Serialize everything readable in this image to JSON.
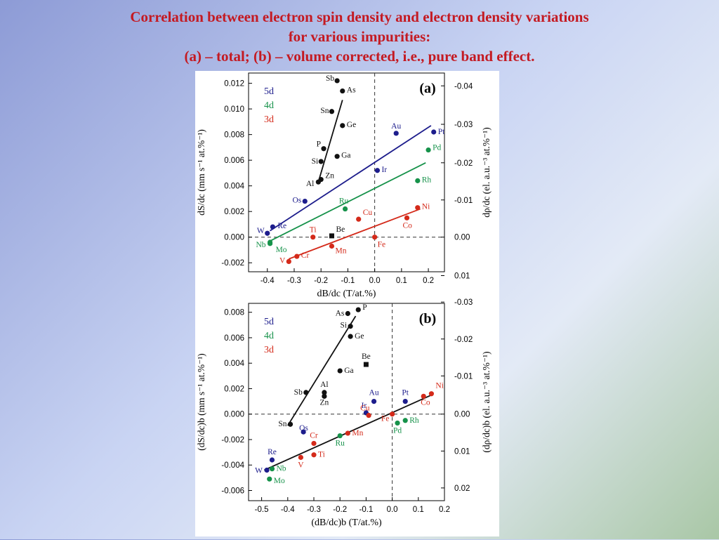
{
  "slide": {
    "title_line1": "Correlation between electron spin density and electron density variations",
    "title_line2": "for various impurities:",
    "title_line3": "(a) – total; (b) – volume corrected, i.e., pure band effect."
  },
  "colors": {
    "title": "#c41a22",
    "5d": "#1d1d8c",
    "4d": "#16924a",
    "3d": "#d42a1a",
    "sp": "#111111",
    "zero_line": "#333333"
  },
  "chart_data": [
    {
      "id": "a",
      "type": "scatter",
      "panel_label": "(a)",
      "xlabel": "dB/dc  (T/at.%)",
      "ylabel": "dS/dc  (mm s⁻¹ at.%⁻¹)",
      "y2label": "dρ/dc  (el. a.u.⁻³ at.%⁻¹)",
      "xlim": [
        -0.47,
        0.26
      ],
      "ylim": [
        -0.0027,
        0.0128
      ],
      "xticks": [
        -0.4,
        -0.3,
        -0.2,
        -0.1,
        0.0,
        0.1,
        0.2
      ],
      "xtick_labels": [
        "-0.4",
        "-0.3",
        "-0.2",
        "-0.1",
        "0.0",
        "0.1",
        "0.2"
      ],
      "yticks": [
        -0.002,
        0.0,
        0.002,
        0.004,
        0.006,
        0.008,
        0.01,
        0.012
      ],
      "ytick_labels": [
        "-0.002",
        "0.000",
        "0.002",
        "0.004",
        "0.006",
        "0.008",
        "0.010",
        "0.012"
      ],
      "y2ticks": [
        0.0118,
        0.0088,
        0.0058,
        0.0029,
        0.0,
        -0.003
      ],
      "y2tick_labels": [
        "-0.04",
        "-0.03",
        "-0.02",
        "-0.01",
        "0.00",
        "0.01"
      ],
      "legend": [
        {
          "label": "5d",
          "group": "5d"
        },
        {
          "label": "4d",
          "group": "4d"
        },
        {
          "label": "3d",
          "group": "3d"
        }
      ],
      "zero_lines": {
        "x": 0.0,
        "y": 0.0
      },
      "series": [
        {
          "name": "5d",
          "points": [
            {
              "label": "W",
              "x": -0.4,
              "y": 0.0003
            },
            {
              "label": "Re",
              "x": -0.38,
              "y": 0.0008
            },
            {
              "label": "Os",
              "x": -0.26,
              "y": 0.0028
            },
            {
              "label": "Ir",
              "x": 0.01,
              "y": 0.0052
            },
            {
              "label": "Au",
              "x": 0.08,
              "y": 0.0081
            },
            {
              "label": "Pt",
              "x": 0.22,
              "y": 0.0082
            }
          ]
        },
        {
          "name": "4d",
          "points": [
            {
              "label": "Nb",
              "x": -0.39,
              "y": -0.0005
            },
            {
              "label": "Mo",
              "x": -0.39,
              "y": -0.0004
            },
            {
              "label": "Ru",
              "x": -0.11,
              "y": 0.0022
            },
            {
              "label": "Rh",
              "x": 0.16,
              "y": 0.0044
            },
            {
              "label": "Pd",
              "x": 0.2,
              "y": 0.0068
            }
          ]
        },
        {
          "name": "3d",
          "points": [
            {
              "label": "V",
              "x": -0.32,
              "y": -0.0019
            },
            {
              "label": "Cr",
              "x": -0.29,
              "y": -0.0015
            },
            {
              "label": "Ti",
              "x": -0.23,
              "y": 0.0
            },
            {
              "label": "Mn",
              "x": -0.16,
              "y": -0.0007
            },
            {
              "label": "Cu",
              "x": -0.06,
              "y": 0.0014
            },
            {
              "label": "Fe",
              "x": 0.0,
              "y": 0.0
            },
            {
              "label": "Co",
              "x": 0.12,
              "y": 0.0015
            },
            {
              "label": "Ni",
              "x": 0.16,
              "y": 0.0023
            }
          ]
        },
        {
          "name": "sp",
          "points": [
            {
              "label": "Sb",
              "x": -0.14,
              "y": 0.0122
            },
            {
              "label": "As",
              "x": -0.12,
              "y": 0.0114
            },
            {
              "label": "Sn",
              "x": -0.16,
              "y": 0.0098
            },
            {
              "label": "Ge",
              "x": -0.12,
              "y": 0.0087
            },
            {
              "label": "P",
              "x": -0.19,
              "y": 0.0069
            },
            {
              "label": "Ga",
              "x": -0.14,
              "y": 0.0063
            },
            {
              "label": "Si",
              "x": -0.2,
              "y": 0.0059
            },
            {
              "label": "Zn",
              "x": -0.2,
              "y": 0.0045
            },
            {
              "label": "Al",
              "x": -0.21,
              "y": 0.0043
            }
          ]
        },
        {
          "name": "Be",
          "points": [
            {
              "label": "Be",
              "x": -0.16,
              "y": 0.0001
            }
          ]
        }
      ],
      "fit_lines": [
        {
          "group": "5d",
          "from": [
            -0.39,
            0.0005
          ],
          "to": [
            0.21,
            0.0087
          ]
        },
        {
          "group": "4d",
          "from": [
            -0.39,
            -0.0003
          ],
          "to": [
            0.19,
            0.0058
          ]
        },
        {
          "group": "3d",
          "from": [
            -0.32,
            -0.0017
          ],
          "to": [
            0.17,
            0.0022
          ]
        },
        {
          "group": "sp",
          "from": [
            -0.21,
            0.0043
          ],
          "to": [
            -0.12,
            0.0107
          ]
        }
      ]
    },
    {
      "id": "b",
      "type": "scatter",
      "panel_label": "(b)",
      "xlabel": "(dB/dc)b  (T/at.%)",
      "ylabel": "(dS/dc)b  (mm s⁻¹ at.%⁻¹)",
      "y2label": "(dρ/dc)b  (el. a.u.⁻³ at.%⁻¹)",
      "xlim": [
        -0.55,
        0.2
      ],
      "ylim": [
        -0.0068,
        0.0087
      ],
      "xticks": [
        -0.5,
        -0.4,
        -0.3,
        -0.2,
        -0.1,
        0.0,
        0.1,
        0.2
      ],
      "xtick_labels": [
        "-0.5",
        "-0.4",
        "-0.3",
        "-0.2",
        "-0.1",
        "0.0",
        "0.1",
        "0.2"
      ],
      "yticks": [
        -0.006,
        -0.004,
        -0.002,
        0.0,
        0.002,
        0.004,
        0.006,
        0.008
      ],
      "ytick_labels": [
        "-0.006",
        "-0.004",
        "-0.002",
        "0.000",
        "0.002",
        "0.004",
        "0.006",
        "0.008"
      ],
      "y2ticks": [
        0.0088,
        0.0059,
        0.003,
        0.0,
        -0.0029,
        -0.0058
      ],
      "y2tick_labels": [
        "-0.03",
        "-0.02",
        "-0.01",
        "0.00",
        "0.01",
        "0.02"
      ],
      "legend": [
        {
          "label": "5d",
          "group": "5d"
        },
        {
          "label": "4d",
          "group": "4d"
        },
        {
          "label": "3d",
          "group": "3d"
        }
      ],
      "zero_lines": {
        "x": 0.0,
        "y": 0.0
      },
      "series": [
        {
          "name": "5d",
          "points": [
            {
              "label": "W",
              "x": -0.48,
              "y": -0.0044
            },
            {
              "label": "Re",
              "x": -0.46,
              "y": -0.0036
            },
            {
              "label": "Os",
              "x": -0.34,
              "y": -0.0014
            },
            {
              "label": "Ir",
              "x": -0.1,
              "y": 0.0001
            },
            {
              "label": "Au",
              "x": -0.07,
              "y": 0.001
            },
            {
              "label": "Pt",
              "x": 0.05,
              "y": 0.001
            }
          ]
        },
        {
          "name": "4d",
          "points": [
            {
              "label": "Nb",
              "x": -0.46,
              "y": -0.0043
            },
            {
              "label": "Mo",
              "x": -0.47,
              "y": -0.0051
            },
            {
              "label": "Ru",
              "x": -0.2,
              "y": -0.0017
            },
            {
              "label": "Pd",
              "x": 0.02,
              "y": -0.0007
            },
            {
              "label": "Rh",
              "x": 0.05,
              "y": -0.0005
            }
          ]
        },
        {
          "name": "3d",
          "points": [
            {
              "label": "V",
              "x": -0.35,
              "y": -0.0034
            },
            {
              "label": "Ti",
              "x": -0.3,
              "y": -0.0032
            },
            {
              "label": "Cr",
              "x": -0.3,
              "y": -0.0023
            },
            {
              "label": "Mn",
              "x": -0.17,
              "y": -0.0015
            },
            {
              "label": "Cu",
              "x": -0.09,
              "y": -0.0001
            },
            {
              "label": "Fe",
              "x": 0.0,
              "y": 0.0
            },
            {
              "label": "Co",
              "x": 0.12,
              "y": 0.0014
            },
            {
              "label": "Ni",
              "x": 0.15,
              "y": 0.0016
            }
          ]
        },
        {
          "name": "sp",
          "points": [
            {
              "label": "P",
              "x": -0.13,
              "y": 0.0082
            },
            {
              "label": "As",
              "x": -0.17,
              "y": 0.0079
            },
            {
              "label": "Si",
              "x": -0.16,
              "y": 0.0069
            },
            {
              "label": "Ge",
              "x": -0.16,
              "y": 0.0061
            },
            {
              "label": "Ga",
              "x": -0.2,
              "y": 0.0034
            },
            {
              "label": "Sb",
              "x": -0.33,
              "y": 0.0017
            },
            {
              "label": "Al",
              "x": -0.26,
              "y": 0.0017
            },
            {
              "label": "Zn",
              "x": -0.26,
              "y": 0.0014
            },
            {
              "label": "Sn",
              "x": -0.39,
              "y": -0.0008
            }
          ]
        },
        {
          "name": "Be",
          "points": [
            {
              "label": "Be",
              "x": -0.1,
              "y": 0.0039
            }
          ]
        }
      ],
      "fit_lines": [
        {
          "group": "all",
          "from": [
            -0.49,
            -0.0044
          ],
          "to": [
            0.15,
            0.0015
          ]
        },
        {
          "group": "sp",
          "from": [
            -0.4,
            -0.0009
          ],
          "to": [
            -0.14,
            0.0077
          ]
        }
      ]
    }
  ]
}
